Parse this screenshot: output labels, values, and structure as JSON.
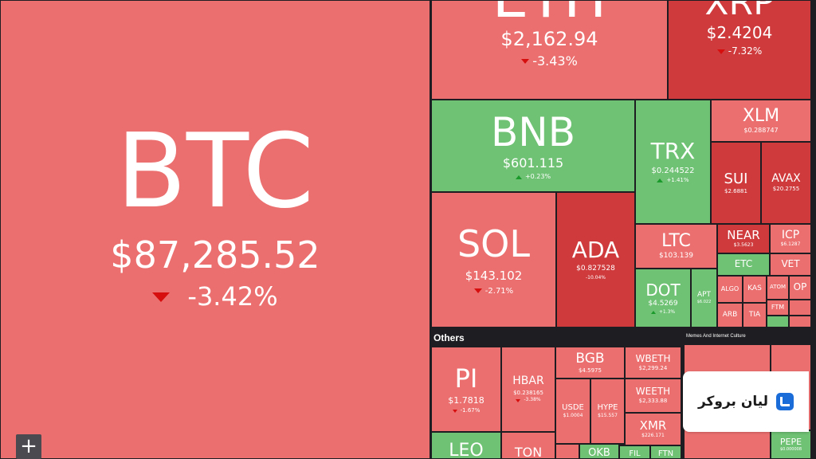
{
  "tiles": {
    "btc": {
      "symbol": "BTC",
      "price": "$87,285.52",
      "change": "-3.42%"
    },
    "eth": {
      "symbol": "ETH",
      "price": "$2,162.94",
      "change": "-3.43%"
    },
    "xrp": {
      "symbol": "XRP",
      "price": "$2.4204",
      "change": "-7.32%"
    },
    "bnb": {
      "symbol": "BNB",
      "price": "$601.115",
      "change": "+0.23%"
    },
    "trx": {
      "symbol": "TRX",
      "price": "$0.244522",
      "change": "+1.41%"
    },
    "xlm": {
      "symbol": "XLM",
      "price": "$0.288747",
      "change": ""
    },
    "sui": {
      "symbol": "SUI",
      "price": "$2.6881",
      "change": ""
    },
    "avax": {
      "symbol": "AVAX",
      "price": "$20.2755",
      "change": ""
    },
    "sol": {
      "symbol": "SOL",
      "price": "$143.102",
      "change": "-2.71%"
    },
    "ada": {
      "symbol": "ADA",
      "price": "$0.827528",
      "change": "-10.04%"
    },
    "ltc": {
      "symbol": "LTC",
      "price": "$103.139",
      "change": ""
    },
    "near": {
      "symbol": "NEAR",
      "price": "$3.5623",
      "change": ""
    },
    "icp": {
      "symbol": "ICP",
      "price": "$6.1287",
      "change": ""
    },
    "dot": {
      "symbol": "DOT",
      "price": "$4.5269",
      "change": "+1.3%"
    },
    "apt": {
      "symbol": "APT",
      "price": "$6.022",
      "change": ""
    },
    "etc": {
      "symbol": "ETC",
      "price": "",
      "change": ""
    },
    "vet": {
      "symbol": "VET",
      "price": "",
      "change": ""
    },
    "algo": {
      "symbol": "ALGO",
      "price": "",
      "change": ""
    },
    "kas": {
      "symbol": "KAS",
      "price": "",
      "change": ""
    },
    "atom": {
      "symbol": "ATOM",
      "price": "",
      "change": ""
    },
    "op": {
      "symbol": "OP",
      "price": "",
      "change": ""
    },
    "ftm": {
      "symbol": "FTM",
      "price": "",
      "change": ""
    },
    "arb": {
      "symbol": "ARB",
      "price": "",
      "change": ""
    },
    "tia": {
      "symbol": "TIA",
      "price": "",
      "change": ""
    },
    "pi": {
      "symbol": "PI",
      "price": "$1.7818",
      "change": "-1.67%"
    },
    "hbar": {
      "symbol": "HBAR",
      "price": "$0.238165",
      "change": "-3.38%"
    },
    "bgb": {
      "symbol": "BGB",
      "price": "$4.5975",
      "change": ""
    },
    "wbeth": {
      "symbol": "WBETH",
      "price": "$2,299.24",
      "change": ""
    },
    "usde": {
      "symbol": "USDE",
      "price": "$1.0004",
      "change": ""
    },
    "hype": {
      "symbol": "HYPE",
      "price": "$15.557",
      "change": ""
    },
    "weeth": {
      "symbol": "WEETH",
      "price": "$2,333.88",
      "change": ""
    },
    "xmr": {
      "symbol": "XMR",
      "price": "$226.171",
      "change": ""
    },
    "leo": {
      "symbol": "LEO",
      "price": "",
      "change": ""
    },
    "ton": {
      "symbol": "TON",
      "price": "",
      "change": ""
    },
    "okb": {
      "symbol": "OKB",
      "price": "",
      "change": ""
    },
    "fil": {
      "symbol": "FIL",
      "price": "",
      "change": ""
    },
    "ftn": {
      "symbol": "FTN",
      "price": "",
      "change": ""
    },
    "pepe": {
      "symbol": "PEPE",
      "price": "$0.000008",
      "change": ""
    }
  },
  "sections": {
    "others": "Others",
    "memes": "Memes And Internet Culture"
  },
  "controls": {
    "plus": "+"
  },
  "brand": {
    "name": "لیان بروکر"
  },
  "colors": {
    "red": "#ec6f6f",
    "dark_red": "#cf3b3d",
    "green": "#6fc174",
    "background": "#1e1e22",
    "brand_blue": "#1a6cd9"
  }
}
